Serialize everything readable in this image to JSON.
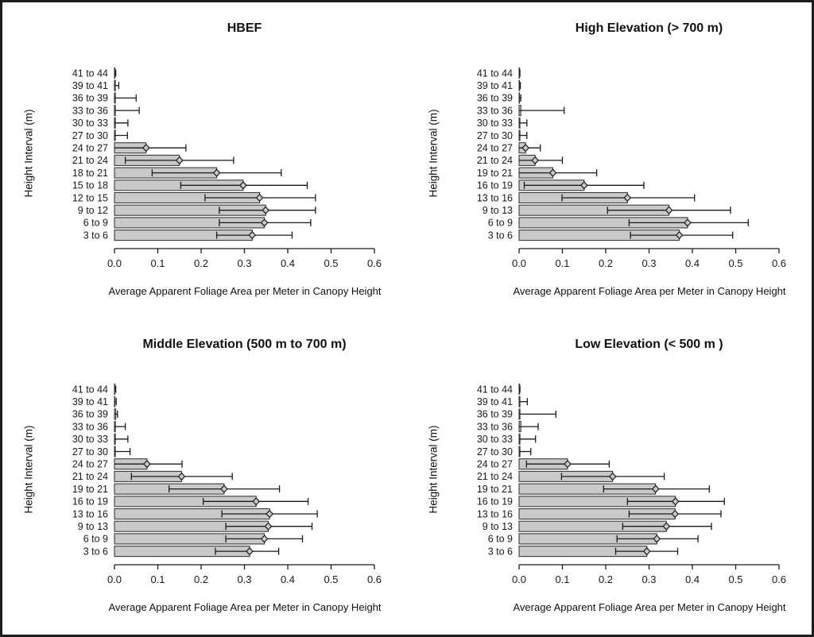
{
  "figure": {
    "layout": "2x2 grid of horizontal bar charts with error bars",
    "background": "#ffffff",
    "frame_border": "#1c1c1c"
  },
  "colors": {
    "bar_fill": "#c9c9c9",
    "bar_border": "#3a3a3a",
    "error_bar": "#1a1a1a",
    "text": "#1a1a1a",
    "axis": "#1a1a1a"
  },
  "chart_data": [
    {
      "type": "bar",
      "orientation": "horizontal",
      "title": "HBEF",
      "xlabel": "Average Apparent Foliage Area per Meter in Canopy Height",
      "ylabel": "Height Interval (m)",
      "xlim": [
        0,
        0.6
      ],
      "xticks": [
        "0.0",
        "0.1",
        "0.2",
        "0.3",
        "0.4",
        "0.5",
        "0.6"
      ],
      "grid": false,
      "legend": "none",
      "categories": [
        "41 to 44",
        "39 to 41",
        "36 to 39",
        "33 to 36",
        "30 to 33",
        "27 to 30",
        "24 to 27",
        "21 to 24",
        "18 to 21",
        "15 to 18",
        "12 to 15",
        "9 to 12",
        "6 to 9",
        "3 to 6"
      ],
      "values": [
        0.001,
        0.002,
        0.002,
        0.002,
        0.002,
        0.002,
        0.073,
        0.15,
        0.236,
        0.297,
        0.335,
        0.349,
        0.346,
        0.318
      ],
      "error_low": [
        0,
        0,
        0,
        0,
        0,
        0,
        0,
        0.025,
        0.087,
        0.153,
        0.209,
        0.242,
        0.242,
        0.236
      ],
      "error_high": [
        0.003,
        0.01,
        0.05,
        0.057,
        0.031,
        0.03,
        0.165,
        0.275,
        0.385,
        0.445,
        0.464,
        0.464,
        0.453,
        0.41
      ]
    },
    {
      "type": "bar",
      "orientation": "horizontal",
      "title": "High Elevation (> 700 m)",
      "xlabel": "Average Apparent Foliage Area per Meter in Canopy Height",
      "ylabel": "Height Interval (m)",
      "xlim": [
        0,
        0.6
      ],
      "xticks": [
        "0.0",
        "0.1",
        "0.2",
        "0.3",
        "0.4",
        "0.5",
        "0.6"
      ],
      "grid": false,
      "legend": "none",
      "categories": [
        "41 to 44",
        "39 to 41",
        "36 to 39",
        "33 to 36",
        "30 to 33",
        "27 to 30",
        "24 to 27",
        "21 to 24",
        "19 to 21",
        "16 to 19",
        "13 to 16",
        "9 to 13",
        "6 to 9",
        "3 to 6"
      ],
      "values": [
        0.001,
        0.001,
        0.001,
        0.004,
        0.002,
        0.002,
        0.015,
        0.037,
        0.078,
        0.15,
        0.25,
        0.346,
        0.389,
        0.37
      ],
      "error_low": [
        0,
        0,
        0,
        0,
        0,
        0,
        0,
        0,
        0,
        0.012,
        0.099,
        0.204,
        0.254,
        0.257
      ],
      "error_high": [
        0.002,
        0.003,
        0.004,
        0.104,
        0.018,
        0.018,
        0.049,
        0.1,
        0.179,
        0.288,
        0.405,
        0.488,
        0.529,
        0.493
      ]
    },
    {
      "type": "bar",
      "orientation": "horizontal",
      "title": "Middle Elevation (500 m to 700 m)",
      "xlabel": "Average Apparent Foliage Area per Meter in Canopy Height",
      "ylabel": "Height Interval (m)",
      "xlim": [
        0,
        0.6
      ],
      "xticks": [
        "0.0",
        "0.1",
        "0.2",
        "0.3",
        "0.4",
        "0.5",
        "0.6"
      ],
      "grid": false,
      "legend": "none",
      "categories": [
        "41 to 44",
        "39 to 41",
        "36 to 39",
        "33 to 36",
        "30 to 33",
        "27 to 30",
        "24 to 27",
        "21 to 24",
        "19 to 21",
        "16 to 19",
        "13 to 16",
        "9 to 13",
        "6 to 9",
        "3 to 6"
      ],
      "values": [
        0.001,
        0.001,
        0.003,
        0.002,
        0.002,
        0.002,
        0.075,
        0.155,
        0.253,
        0.327,
        0.358,
        0.355,
        0.346,
        0.312
      ],
      "error_low": [
        0,
        0,
        0,
        0,
        0,
        0,
        0,
        0.039,
        0.126,
        0.205,
        0.248,
        0.257,
        0.257,
        0.233
      ],
      "error_high": [
        0.003,
        0.004,
        0.007,
        0.025,
        0.031,
        0.036,
        0.156,
        0.272,
        0.381,
        0.447,
        0.468,
        0.456,
        0.434,
        0.379
      ]
    },
    {
      "type": "bar",
      "orientation": "horizontal",
      "title": "Low Elevation (< 500 m )",
      "xlabel": "Average Apparent Foliage Area per Meter in Canopy Height",
      "ylabel": "Height Interval (m)",
      "xlim": [
        0,
        0.6
      ],
      "xticks": [
        "0.0",
        "0.1",
        "0.2",
        "0.3",
        "0.4",
        "0.5",
        "0.6"
      ],
      "grid": false,
      "legend": "none",
      "categories": [
        "41 to 44",
        "39 to 41",
        "36 to 39",
        "33 to 36",
        "30 to 33",
        "27 to 30",
        "24 to 27",
        "21 to 24",
        "19 to 21",
        "16 to 19",
        "13 to 16",
        "9 to 13",
        "6 to 9",
        "3 to 6"
      ],
      "values": [
        0.001,
        0.002,
        0.002,
        0.004,
        0.002,
        0.002,
        0.112,
        0.216,
        0.315,
        0.361,
        0.36,
        0.34,
        0.318,
        0.295
      ],
      "error_low": [
        0,
        0,
        0,
        0,
        0,
        0,
        0.017,
        0.098,
        0.195,
        0.25,
        0.254,
        0.239,
        0.226,
        0.223
      ],
      "error_high": [
        0.002,
        0.019,
        0.085,
        0.044,
        0.038,
        0.027,
        0.208,
        0.335,
        0.439,
        0.474,
        0.466,
        0.444,
        0.413,
        0.366
      ]
    }
  ]
}
